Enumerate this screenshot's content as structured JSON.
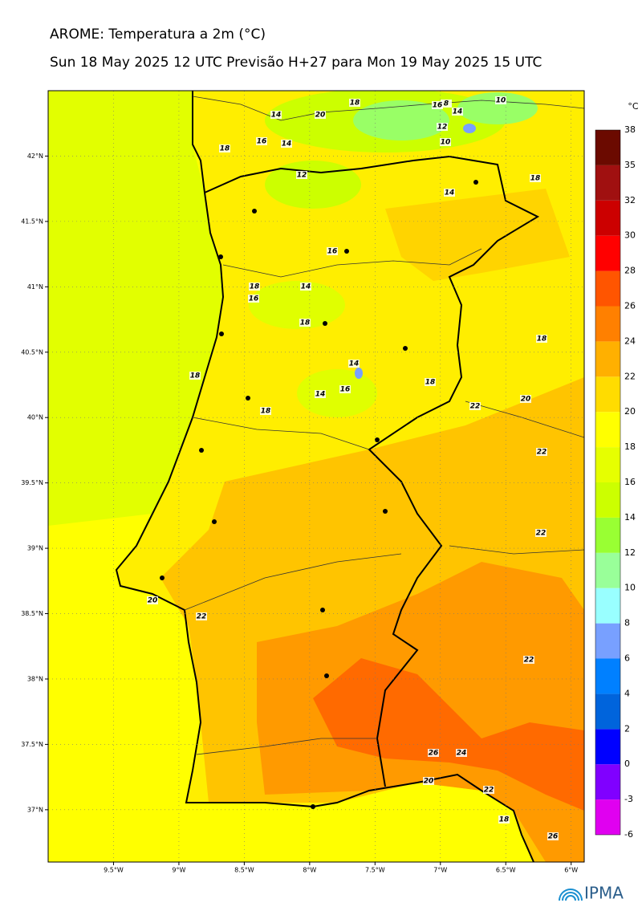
{
  "header": {
    "title": "AROME: Temperatura a 2m (°C)",
    "subtitle": "Sun 18 May 2025 12 UTC Previsão H+27 para Mon 19 May 2025 15 UTC"
  },
  "map": {
    "xlim": [
      -10.0,
      -5.9
    ],
    "ylim": [
      36.6,
      42.5
    ],
    "yticks": [
      {
        "value": 42,
        "label": "42°N"
      },
      {
        "value": 41.5,
        "label": "41.5°N"
      },
      {
        "value": 41,
        "label": "41°N"
      },
      {
        "value": 40.5,
        "label": "40.5°N"
      },
      {
        "value": 40,
        "label": "40°N"
      },
      {
        "value": 39.5,
        "label": "39.5°N"
      },
      {
        "value": 39,
        "label": "39°N"
      },
      {
        "value": 38.5,
        "label": "38.5°N"
      },
      {
        "value": 38,
        "label": "38°N"
      },
      {
        "value": 37.5,
        "label": "37.5°N"
      },
      {
        "value": 37,
        "label": "37°N"
      }
    ],
    "xticks": [
      {
        "value": -9.5,
        "label": "9.5°W"
      },
      {
        "value": -9,
        "label": "9°W"
      },
      {
        "value": -8.5,
        "label": "8.5°W"
      },
      {
        "value": -8,
        "label": "8°W"
      },
      {
        "value": -7.5,
        "label": "7.5°W"
      },
      {
        "value": -7,
        "label": "7°W"
      },
      {
        "value": -6.5,
        "label": "6.5°W"
      },
      {
        "value": -6,
        "label": "6°W"
      }
    ],
    "grid": true,
    "contour_labels": [
      "14",
      "20",
      "18",
      "16",
      "8",
      "14",
      "10",
      "12",
      "10",
      "18",
      "16",
      "14",
      "12",
      "14",
      "18",
      "16",
      "18",
      "14",
      "16",
      "18",
      "14",
      "18",
      "18",
      "14",
      "16",
      "18",
      "18",
      "22",
      "20",
      "22",
      "22",
      "22",
      "20",
      "22",
      "26",
      "24",
      "20",
      "22",
      "18",
      "26"
    ]
  },
  "colorbar": {
    "unit": "°C",
    "levels": [
      -6,
      -3,
      0,
      2,
      4,
      6,
      8,
      10,
      12,
      14,
      16,
      18,
      20,
      22,
      24,
      26,
      28,
      30,
      32,
      35,
      38
    ],
    "colors": [
      "#e000f0",
      "#8000ff",
      "#0000ff",
      "#0064dc",
      "#0080ff",
      "#78a0ff",
      "#99ffff",
      "#99ff99",
      "#99ff33",
      "#ccff00",
      "#e6ff00",
      "#ffff00",
      "#ffdc00",
      "#ffb000",
      "#ff8000",
      "#ff5500",
      "#ff0000",
      "#cc0000",
      "#a01010",
      "#6b0a00"
    ]
  },
  "logo": "IPMA"
}
